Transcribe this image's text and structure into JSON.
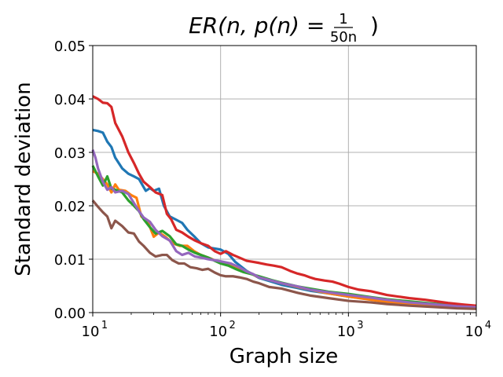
{
  "chart_data": {
    "type": "line",
    "title": {
      "main": "ER(n, p(n) = ",
      "frac_num": "1",
      "frac_den": "50n",
      "close": ")"
    },
    "xlabel": "Graph size",
    "ylabel": "Standard deviation",
    "xscale": "log",
    "xlim": [
      10,
      10000
    ],
    "ylim": [
      0,
      0.05
    ],
    "grid": true,
    "x_ticks": [
      {
        "value": 10,
        "base": "10",
        "exp": "1"
      },
      {
        "value": 100,
        "base": "10",
        "exp": "2"
      },
      {
        "value": 1000,
        "base": "10",
        "exp": "3"
      },
      {
        "value": 10000,
        "base": "10",
        "exp": "4"
      }
    ],
    "y_ticks": [
      {
        "value": 0,
        "label": "0.00"
      },
      {
        "value": 0.01,
        "label": "0.01"
      },
      {
        "value": 0.02,
        "label": "0.02"
      },
      {
        "value": 0.03,
        "label": "0.03"
      },
      {
        "value": 0.04,
        "label": "0.04"
      },
      {
        "value": 0.05,
        "label": "0.05"
      }
    ],
    "series": [
      {
        "color": "#1f77b4",
        "points": [
          [
            10,
            0.0342
          ],
          [
            11,
            0.034
          ],
          [
            12,
            0.0337
          ],
          [
            13,
            0.032
          ],
          [
            14,
            0.031
          ],
          [
            15,
            0.029
          ],
          [
            17,
            0.027
          ],
          [
            19,
            0.026
          ],
          [
            21,
            0.0255
          ],
          [
            23,
            0.025
          ],
          [
            25,
            0.0235
          ],
          [
            26,
            0.0228
          ],
          [
            28,
            0.0233
          ],
          [
            30,
            0.0228
          ],
          [
            33,
            0.0232
          ],
          [
            36,
            0.02
          ],
          [
            40,
            0.018
          ],
          [
            44,
            0.0175
          ],
          [
            50,
            0.0168
          ],
          [
            55,
            0.0155
          ],
          [
            62,
            0.0143
          ],
          [
            70,
            0.013
          ],
          [
            80,
            0.0122
          ],
          [
            90,
            0.012
          ],
          [
            100,
            0.0118
          ],
          [
            115,
            0.011
          ],
          [
            130,
            0.0095
          ],
          [
            160,
            0.0078
          ],
          [
            200,
            0.0065
          ],
          [
            250,
            0.0058
          ],
          [
            300,
            0.0052
          ],
          [
            400,
            0.0046
          ],
          [
            500,
            0.0041
          ],
          [
            700,
            0.0036
          ],
          [
            1000,
            0.003
          ],
          [
            1500,
            0.0025
          ],
          [
            2000,
            0.0022
          ],
          [
            3000,
            0.0019
          ],
          [
            5000,
            0.0016
          ],
          [
            7000,
            0.0013
          ],
          [
            10000,
            0.0011
          ]
        ]
      },
      {
        "color": "#ff7f0e",
        "points": [
          [
            10,
            0.0265
          ],
          [
            11,
            0.026
          ],
          [
            12,
            0.025
          ],
          [
            13,
            0.024
          ],
          [
            14,
            0.0225
          ],
          [
            15,
            0.024
          ],
          [
            16,
            0.023
          ],
          [
            18,
            0.0228
          ],
          [
            20,
            0.022
          ],
          [
            22,
            0.0215
          ],
          [
            24,
            0.018
          ],
          [
            27,
            0.017
          ],
          [
            30,
            0.0142
          ],
          [
            33,
            0.015
          ],
          [
            37,
            0.0142
          ],
          [
            42,
            0.013
          ],
          [
            48,
            0.0125
          ],
          [
            55,
            0.0125
          ],
          [
            62,
            0.0115
          ],
          [
            70,
            0.0108
          ],
          [
            80,
            0.0103
          ],
          [
            90,
            0.0098
          ],
          [
            100,
            0.0095
          ],
          [
            120,
            0.0088
          ],
          [
            150,
            0.008
          ],
          [
            200,
            0.0066
          ],
          [
            250,
            0.006
          ],
          [
            300,
            0.0055
          ],
          [
            400,
            0.0048
          ],
          [
            500,
            0.0043
          ],
          [
            700,
            0.0036
          ],
          [
            1000,
            0.003
          ],
          [
            1500,
            0.0024
          ],
          [
            2000,
            0.002
          ],
          [
            3000,
            0.0017
          ],
          [
            5000,
            0.0013
          ],
          [
            7000,
            0.0011
          ],
          [
            10000,
            0.0009
          ]
        ]
      },
      {
        "color": "#2ca02c",
        "points": [
          [
            10,
            0.0275
          ],
          [
            11,
            0.0255
          ],
          [
            12,
            0.0238
          ],
          [
            13,
            0.0255
          ],
          [
            14,
            0.0232
          ],
          [
            15,
            0.023
          ],
          [
            17,
            0.0225
          ],
          [
            19,
            0.021
          ],
          [
            21,
            0.02
          ],
          [
            23,
            0.019
          ],
          [
            25,
            0.0175
          ],
          [
            28,
            0.016
          ],
          [
            31,
            0.0148
          ],
          [
            35,
            0.0153
          ],
          [
            40,
            0.0143
          ],
          [
            45,
            0.0128
          ],
          [
            50,
            0.0125
          ],
          [
            56,
            0.0118
          ],
          [
            63,
            0.0112
          ],
          [
            70,
            0.0108
          ],
          [
            80,
            0.0103
          ],
          [
            90,
            0.0097
          ],
          [
            100,
            0.0092
          ],
          [
            115,
            0.0088
          ],
          [
            130,
            0.0082
          ],
          [
            150,
            0.0076
          ],
          [
            175,
            0.0072
          ],
          [
            200,
            0.0068
          ],
          [
            250,
            0.0061
          ],
          [
            300,
            0.0056
          ],
          [
            400,
            0.0049
          ],
          [
            500,
            0.0045
          ],
          [
            700,
            0.0039
          ],
          [
            1000,
            0.0035
          ],
          [
            1500,
            0.0029
          ],
          [
            2000,
            0.0025
          ],
          [
            3000,
            0.0021
          ],
          [
            5000,
            0.0016
          ],
          [
            7000,
            0.0013
          ],
          [
            10000,
            0.0011
          ]
        ]
      },
      {
        "color": "#d62728",
        "points": [
          [
            10,
            0.0405
          ],
          [
            11,
            0.04
          ],
          [
            12,
            0.0393
          ],
          [
            13,
            0.0392
          ],
          [
            14,
            0.0385
          ],
          [
            15,
            0.0355
          ],
          [
            17,
            0.033
          ],
          [
            19,
            0.03
          ],
          [
            21,
            0.028
          ],
          [
            23,
            0.026
          ],
          [
            25,
            0.0245
          ],
          [
            28,
            0.0235
          ],
          [
            31,
            0.0225
          ],
          [
            35,
            0.022
          ],
          [
            38,
            0.0185
          ],
          [
            41,
            0.0175
          ],
          [
            45,
            0.0155
          ],
          [
            50,
            0.015
          ],
          [
            56,
            0.0142
          ],
          [
            63,
            0.0135
          ],
          [
            70,
            0.013
          ],
          [
            80,
            0.0125
          ],
          [
            90,
            0.0115
          ],
          [
            100,
            0.011
          ],
          [
            110,
            0.0115
          ],
          [
            125,
            0.0108
          ],
          [
            140,
            0.0103
          ],
          [
            160,
            0.0097
          ],
          [
            180,
            0.0095
          ],
          [
            200,
            0.0093
          ],
          [
            230,
            0.009
          ],
          [
            260,
            0.0088
          ],
          [
            300,
            0.0085
          ],
          [
            350,
            0.0078
          ],
          [
            400,
            0.0073
          ],
          [
            450,
            0.007
          ],
          [
            500,
            0.0066
          ],
          [
            550,
            0.0063
          ],
          [
            650,
            0.006
          ],
          [
            750,
            0.0058
          ],
          [
            850,
            0.0054
          ],
          [
            1000,
            0.0048
          ],
          [
            1200,
            0.0043
          ],
          [
            1500,
            0.004
          ],
          [
            2000,
            0.0033
          ],
          [
            3000,
            0.0027
          ],
          [
            4000,
            0.0024
          ],
          [
            6000,
            0.0018
          ],
          [
            8000,
            0.0015
          ],
          [
            10000,
            0.0013
          ]
        ]
      },
      {
        "color": "#9467bd",
        "points": [
          [
            10,
            0.0305
          ],
          [
            10.5,
            0.029
          ],
          [
            11,
            0.027
          ],
          [
            12,
            0.0245
          ],
          [
            13,
            0.023
          ],
          [
            14,
            0.0235
          ],
          [
            15,
            0.0225
          ],
          [
            17,
            0.0228
          ],
          [
            19,
            0.0222
          ],
          [
            21,
            0.0205
          ],
          [
            23,
            0.019
          ],
          [
            25,
            0.0178
          ],
          [
            28,
            0.017
          ],
          [
            31,
            0.0155
          ],
          [
            35,
            0.0143
          ],
          [
            40,
            0.0135
          ],
          [
            45,
            0.0115
          ],
          [
            50,
            0.0108
          ],
          [
            56,
            0.0112
          ],
          [
            63,
            0.0105
          ],
          [
            70,
            0.0103
          ],
          [
            80,
            0.01
          ],
          [
            90,
            0.0098
          ],
          [
            100,
            0.0096
          ],
          [
            120,
            0.0092
          ],
          [
            140,
            0.0085
          ],
          [
            160,
            0.0077
          ],
          [
            180,
            0.0072
          ],
          [
            200,
            0.0066
          ],
          [
            250,
            0.006
          ],
          [
            300,
            0.0055
          ],
          [
            400,
            0.0049
          ],
          [
            500,
            0.0043
          ],
          [
            700,
            0.0038
          ],
          [
            1000,
            0.0033
          ],
          [
            1500,
            0.0028
          ],
          [
            2000,
            0.0024
          ],
          [
            3000,
            0.0019
          ],
          [
            5000,
            0.0015
          ],
          [
            7000,
            0.0012
          ],
          [
            10000,
            0.001
          ]
        ]
      },
      {
        "color": "#8c564b",
        "points": [
          [
            10,
            0.021
          ],
          [
            11,
            0.0198
          ],
          [
            12,
            0.0188
          ],
          [
            13,
            0.018
          ],
          [
            14,
            0.0158
          ],
          [
            15,
            0.0172
          ],
          [
            17,
            0.0162
          ],
          [
            19,
            0.015
          ],
          [
            21,
            0.0148
          ],
          [
            23,
            0.0133
          ],
          [
            25,
            0.0125
          ],
          [
            28,
            0.0112
          ],
          [
            31,
            0.0105
          ],
          [
            35,
            0.0108
          ],
          [
            38,
            0.0108
          ],
          [
            42,
            0.0098
          ],
          [
            47,
            0.0092
          ],
          [
            52,
            0.0092
          ],
          [
            58,
            0.0085
          ],
          [
            65,
            0.0083
          ],
          [
            72,
            0.008
          ],
          [
            80,
            0.0082
          ],
          [
            90,
            0.0075
          ],
          [
            100,
            0.007
          ],
          [
            110,
            0.0068
          ],
          [
            125,
            0.0068
          ],
          [
            140,
            0.0066
          ],
          [
            160,
            0.0063
          ],
          [
            180,
            0.0058
          ],
          [
            200,
            0.0055
          ],
          [
            240,
            0.0048
          ],
          [
            300,
            0.0045
          ],
          [
            400,
            0.0037
          ],
          [
            500,
            0.0032
          ],
          [
            700,
            0.0027
          ],
          [
            1000,
            0.0022
          ],
          [
            1500,
            0.0019
          ],
          [
            2000,
            0.0016
          ],
          [
            3000,
            0.0013
          ],
          [
            5000,
            0.001
          ],
          [
            7000,
            0.0008
          ],
          [
            10000,
            0.0007
          ]
        ]
      }
    ]
  }
}
